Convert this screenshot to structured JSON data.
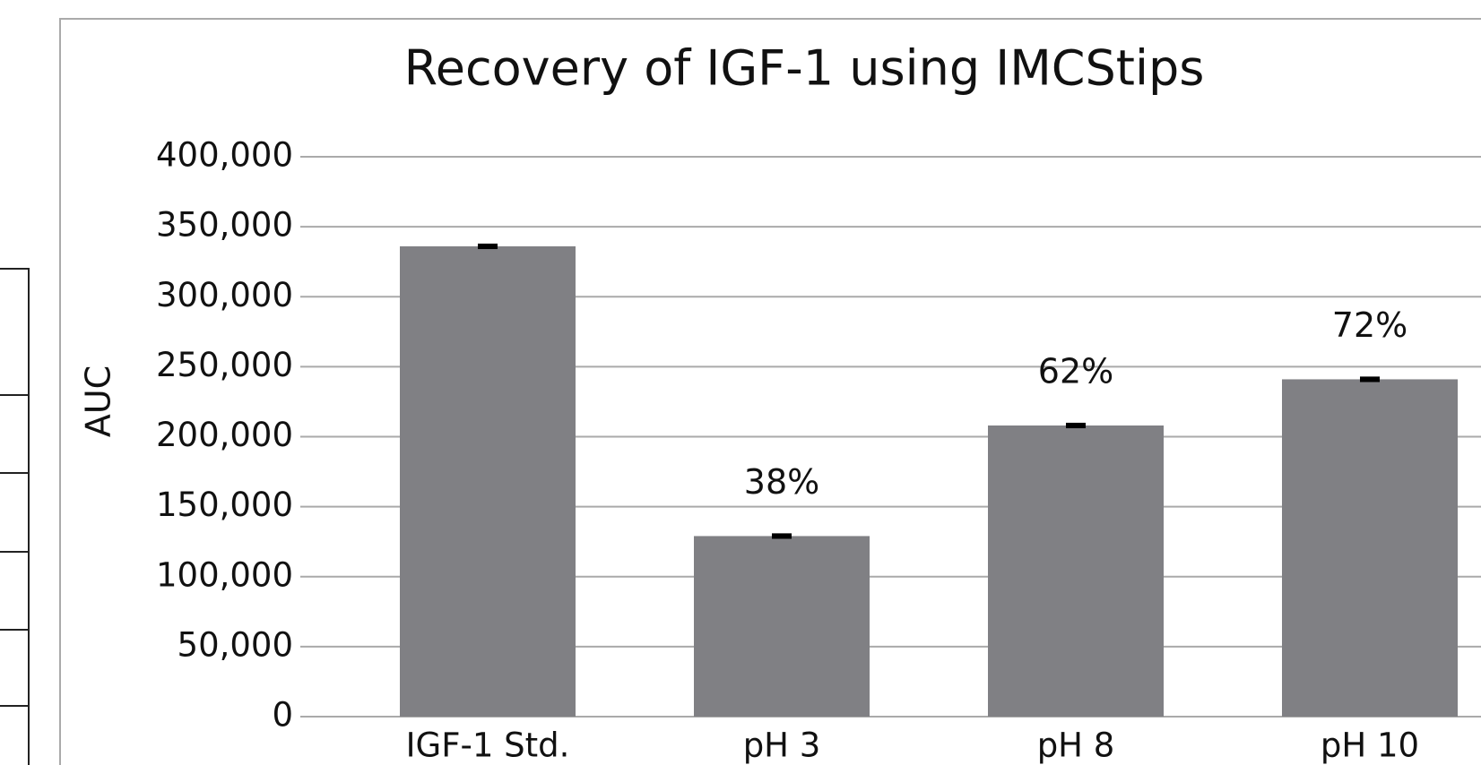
{
  "chart_data": {
    "type": "bar",
    "title": "Recovery of IGF-1 using IMCStips",
    "y_label": "AUC",
    "categories": [
      "IGF-1 Std.",
      "pH 3",
      "pH 8",
      "pH 10"
    ],
    "values": [
      336000,
      129000,
      208000,
      241000
    ],
    "errors": [
      1000,
      1000,
      1000,
      1000
    ],
    "recovery_labels": [
      null,
      "38%",
      "62%",
      "72%"
    ],
    "color": "#808084",
    "ylim": [
      0,
      400000
    ],
    "yticks": [
      {
        "value": 0,
        "label": "0"
      },
      {
        "value": 50000,
        "label": "50,000"
      },
      {
        "value": 100000,
        "label": "100,000"
      },
      {
        "value": 150000,
        "label": "150,000"
      },
      {
        "value": 200000,
        "label": "200,000"
      },
      {
        "value": 250000,
        "label": "250,000"
      },
      {
        "value": 300000,
        "label": "300,000"
      },
      {
        "value": 350000,
        "label": "350,000"
      },
      {
        "value": 400000,
        "label": "400,000"
      }
    ],
    "grid": true
  }
}
